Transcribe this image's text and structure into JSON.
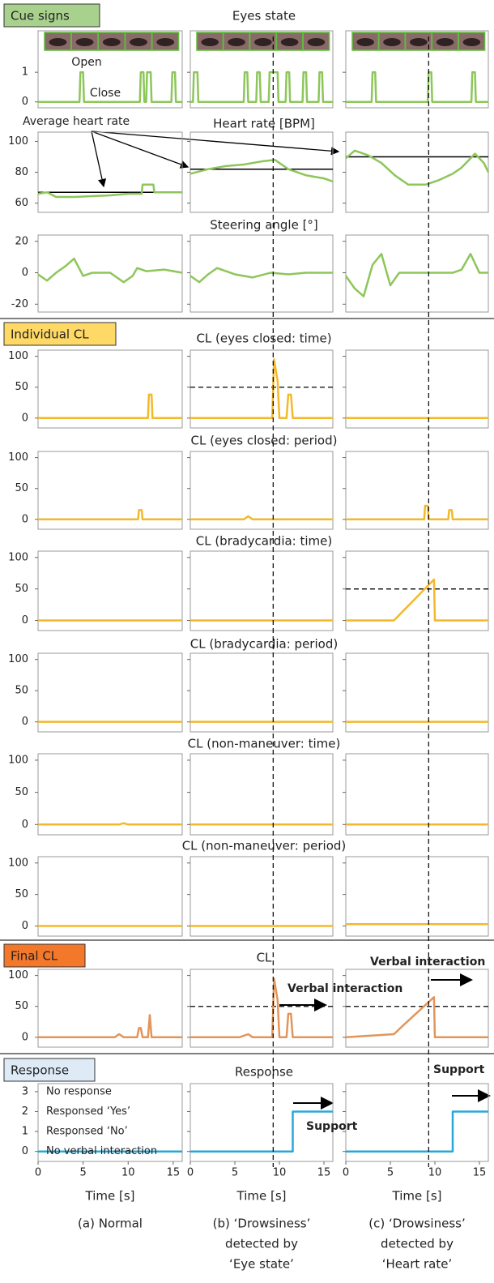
{
  "sections": [
    "Cue signs",
    "Individual CL",
    "Final CL",
    "Response"
  ],
  "columns": [
    {
      "caption": [
        "(a) Normal"
      ]
    },
    {
      "caption": [
        "(b) ‘Drowsiness’",
        "detected by",
        "‘Eye state’"
      ],
      "detection_time": 9.3
    },
    {
      "caption": [
        "(c) ‘Drowsiness’",
        "detected by",
        "‘Heart rate’"
      ],
      "detection_time": 9.3
    }
  ],
  "chart_data": [
    {
      "type": "line",
      "title": "Eyes state",
      "color": "#8dc65a",
      "xlim": [
        0,
        16
      ],
      "ylim": [
        -0.2,
        2.4
      ],
      "yticks": [
        0,
        1
      ],
      "annotations": [
        "Open",
        "Close"
      ],
      "panels": [
        {
          "x": [
            0,
            4.6,
            4.7,
            5.0,
            5.1,
            11.3,
            11.4,
            11.7,
            11.8,
            12.0,
            12.1,
            12.5,
            12.6,
            14.8,
            14.9,
            15.2,
            15.3,
            16
          ],
          "values": [
            0,
            0,
            1,
            1,
            0,
            0,
            1,
            1,
            0,
            0,
            1,
            1,
            0,
            0,
            1,
            1,
            0,
            0
          ]
        },
        {
          "x": [
            0,
            0.3,
            0.4,
            0.8,
            0.9,
            6.0,
            6.1,
            6.4,
            6.5,
            7.4,
            7.5,
            7.8,
            7.9,
            8.8,
            8.9,
            9.8,
            9.9,
            10.7,
            10.8,
            11.1,
            11.2,
            12.6,
            12.7,
            13.0,
            13.1,
            14.4,
            14.5,
            14.8,
            14.9,
            16
          ],
          "values": [
            0,
            0,
            1,
            1,
            0,
            0,
            1,
            1,
            0,
            0,
            1,
            1,
            0,
            0,
            1,
            1,
            0,
            0,
            1,
            1,
            0,
            0,
            1,
            1,
            0,
            0,
            1,
            1,
            0,
            0
          ]
        },
        {
          "x": [
            0,
            2.9,
            3.0,
            3.3,
            3.4,
            9.2,
            9.3,
            9.6,
            9.7,
            14.1,
            14.2,
            14.5,
            14.6,
            16
          ],
          "values": [
            0,
            0,
            1,
            1,
            0,
            0,
            1,
            1,
            0,
            0,
            1,
            1,
            0,
            0
          ]
        }
      ]
    },
    {
      "type": "line",
      "title": "Heart rate [BPM]",
      "color": "#8dc65a",
      "xlim": [
        0,
        16
      ],
      "ylim": [
        54,
        106
      ],
      "yticks": [
        60,
        80,
        100
      ],
      "annotations": [
        "Average heart rate"
      ],
      "panels": [
        {
          "x": [
            0,
            1,
            2,
            4,
            8,
            10,
            11.5,
            11.6,
            12.8,
            12.9,
            16
          ],
          "values": [
            66,
            67,
            64,
            64,
            65,
            66,
            66,
            72,
            72,
            67,
            67
          ],
          "average": 67
        },
        {
          "x": [
            0,
            2,
            4,
            6,
            8,
            9.5,
            11,
            13,
            15,
            16
          ],
          "values": [
            79,
            82,
            84,
            85,
            87,
            88,
            82,
            78,
            76,
            74
          ],
          "average": 82
        },
        {
          "x": [
            0,
            1,
            2.5,
            4,
            5.5,
            7,
            9,
            10.5,
            12,
            13,
            14.5,
            15.5,
            16
          ],
          "values": [
            89,
            94,
            91,
            86,
            78,
            72,
            72,
            75,
            79,
            83,
            92,
            86,
            80
          ],
          "average": 90
        }
      ]
    },
    {
      "type": "line",
      "title": "Steering angle [°]",
      "color": "#8dc65a",
      "xlim": [
        0,
        16
      ],
      "ylim": [
        -25,
        24
      ],
      "yticks": [
        -20,
        0,
        20
      ],
      "panels": [
        {
          "x": [
            0,
            1,
            2,
            3,
            4,
            5,
            6,
            8,
            9.5,
            10.5,
            11,
            12,
            14,
            16
          ],
          "values": [
            -1,
            -5,
            0,
            4,
            9,
            -2,
            0,
            0,
            -6,
            -2,
            3,
            1,
            2,
            0
          ]
        },
        {
          "x": [
            0,
            1,
            2,
            3,
            5,
            7,
            9,
            11,
            13,
            15,
            16
          ],
          "values": [
            -2,
            -6,
            -1,
            3,
            -1,
            -3,
            0,
            -1,
            0,
            0,
            0
          ]
        },
        {
          "x": [
            0,
            1,
            2,
            3,
            4,
            5,
            6,
            8,
            10,
            12,
            13,
            14,
            15,
            16
          ],
          "values": [
            -2,
            -10,
            -15,
            5,
            12,
            -8,
            0,
            0,
            0,
            0,
            2,
            12,
            0,
            0
          ]
        }
      ]
    },
    {
      "type": "line",
      "title": "CL (eyes closed: time)",
      "color": "#f2b92a",
      "xlim": [
        0,
        16
      ],
      "ylim": [
        -16,
        110
      ],
      "yticks": [
        0,
        50,
        100
      ],
      "panels": [
        {
          "x": [
            0,
            12.2,
            12.3,
            12.6,
            12.7,
            16
          ],
          "values": [
            0,
            0,
            38,
            38,
            0,
            0
          ]
        },
        {
          "x": [
            0,
            9.2,
            9.4,
            9.8,
            10.0,
            10.8,
            11.0,
            11.3,
            11.5,
            16
          ],
          "values": [
            0,
            0,
            95,
            60,
            0,
            0,
            38,
            38,
            0,
            0
          ],
          "threshold": 50
        },
        {
          "x": [
            0,
            16
          ],
          "values": [
            0,
            0
          ]
        }
      ]
    },
    {
      "type": "line",
      "title": "CL (eyes closed: period)",
      "color": "#f2b92a",
      "xlim": [
        0,
        16
      ],
      "ylim": [
        -16,
        110
      ],
      "yticks": [
        0,
        50,
        100
      ],
      "panels": [
        {
          "x": [
            0,
            11.1,
            11.2,
            11.5,
            11.6,
            16
          ],
          "values": [
            0,
            0,
            15,
            15,
            0,
            0
          ]
        },
        {
          "x": [
            0,
            6,
            6.5,
            7,
            16
          ],
          "values": [
            0,
            0,
            5,
            0,
            0
          ]
        },
        {
          "x": [
            0,
            8.8,
            8.9,
            9.2,
            9.3,
            11.5,
            11.6,
            11.9,
            12.0,
            16
          ],
          "values": [
            0,
            0,
            22,
            22,
            0,
            0,
            15,
            15,
            0,
            0
          ]
        }
      ]
    },
    {
      "type": "line",
      "title": "CL (bradycardia: time)",
      "color": "#f2b92a",
      "xlim": [
        0,
        16
      ],
      "ylim": [
        -16,
        110
      ],
      "yticks": [
        0,
        50,
        100
      ],
      "panels": [
        {
          "x": [
            0,
            16
          ],
          "values": [
            0,
            0
          ]
        },
        {
          "x": [
            0,
            16
          ],
          "values": [
            0,
            0
          ]
        },
        {
          "x": [
            0,
            5.4,
            9.9,
            10.0,
            16
          ],
          "values": [
            0,
            0,
            65,
            0,
            0
          ],
          "threshold": 50
        }
      ]
    },
    {
      "type": "line",
      "title": "CL (bradycardia: period)",
      "color": "#f2b92a",
      "xlim": [
        0,
        16
      ],
      "ylim": [
        -16,
        110
      ],
      "yticks": [
        0,
        50,
        100
      ],
      "panels": [
        {
          "x": [
            0,
            16
          ],
          "values": [
            0,
            0
          ]
        },
        {
          "x": [
            0,
            16
          ],
          "values": [
            0,
            0
          ]
        },
        {
          "x": [
            0,
            16
          ],
          "values": [
            0,
            0
          ]
        }
      ]
    },
    {
      "type": "line",
      "title": "CL (non-maneuver: time)",
      "color": "#f2b92a",
      "xlim": [
        0,
        16
      ],
      "ylim": [
        -16,
        110
      ],
      "yticks": [
        0,
        50,
        100
      ],
      "panels": [
        {
          "x": [
            0,
            9,
            9.5,
            10,
            16
          ],
          "values": [
            0,
            0,
            2,
            0,
            0
          ]
        },
        {
          "x": [
            0,
            16
          ],
          "values": [
            0,
            0
          ]
        },
        {
          "x": [
            0,
            16
          ],
          "values": [
            0,
            0
          ]
        }
      ]
    },
    {
      "type": "line",
      "title": "CL (non-maneuver: period)",
      "color": "#f2b92a",
      "xlim": [
        0,
        16
      ],
      "ylim": [
        -16,
        110
      ],
      "yticks": [
        0,
        50,
        100
      ],
      "panels": [
        {
          "x": [
            0,
            16
          ],
          "values": [
            0,
            0
          ]
        },
        {
          "x": [
            0,
            16
          ],
          "values": [
            0,
            0
          ]
        },
        {
          "x": [
            0,
            16
          ],
          "values": [
            3,
            3
          ]
        }
      ]
    },
    {
      "type": "line",
      "title": "CL",
      "color": "#e2955a",
      "xlim": [
        0,
        16
      ],
      "ylim": [
        -16,
        110
      ],
      "yticks": [
        0,
        50,
        100
      ],
      "annotations": [
        "Verbal interaction",
        "Verbal interaction"
      ],
      "panels": [
        {
          "x": [
            0,
            8.5,
            9.0,
            9.5,
            11.0,
            11.2,
            11.4,
            11.6,
            12.2,
            12.4,
            12.6,
            16
          ],
          "values": [
            0,
            0,
            5,
            0,
            0,
            15,
            15,
            0,
            0,
            36,
            0,
            0
          ]
        },
        {
          "x": [
            0,
            5.5,
            6.5,
            7.0,
            9.2,
            9.4,
            9.8,
            10.0,
            10.8,
            11.0,
            11.3,
            11.5,
            16
          ],
          "values": [
            0,
            0,
            5,
            0,
            0,
            95,
            60,
            0,
            0,
            38,
            38,
            0,
            0
          ],
          "threshold": 50
        },
        {
          "x": [
            0,
            5.4,
            6.5,
            9.9,
            10.0,
            16
          ],
          "values": [
            0,
            5,
            20,
            65,
            0,
            0
          ],
          "threshold": 50
        }
      ]
    },
    {
      "type": "line",
      "title": "Response",
      "color": "#29a8d8",
      "xlim": [
        0,
        16
      ],
      "ylim": [
        -0.5,
        3.4
      ],
      "yticks": [
        0,
        1,
        2,
        3
      ],
      "level_labels": [
        "No verbal interaction",
        "Responsed ‘No’",
        "Responsed ‘Yes’",
        "No response"
      ],
      "xticks": [
        0,
        5,
        10,
        15
      ],
      "xlabel": "Time [s]",
      "annotations": [
        "Support",
        "Support"
      ],
      "panels": [
        {
          "x": [
            0,
            16
          ],
          "values": [
            0,
            0
          ]
        },
        {
          "x": [
            0,
            11.5,
            11.5,
            16
          ],
          "values": [
            0,
            0,
            2,
            2
          ]
        },
        {
          "x": [
            0,
            12,
            12,
            16
          ],
          "values": [
            0,
            0,
            2,
            2
          ]
        }
      ]
    }
  ]
}
